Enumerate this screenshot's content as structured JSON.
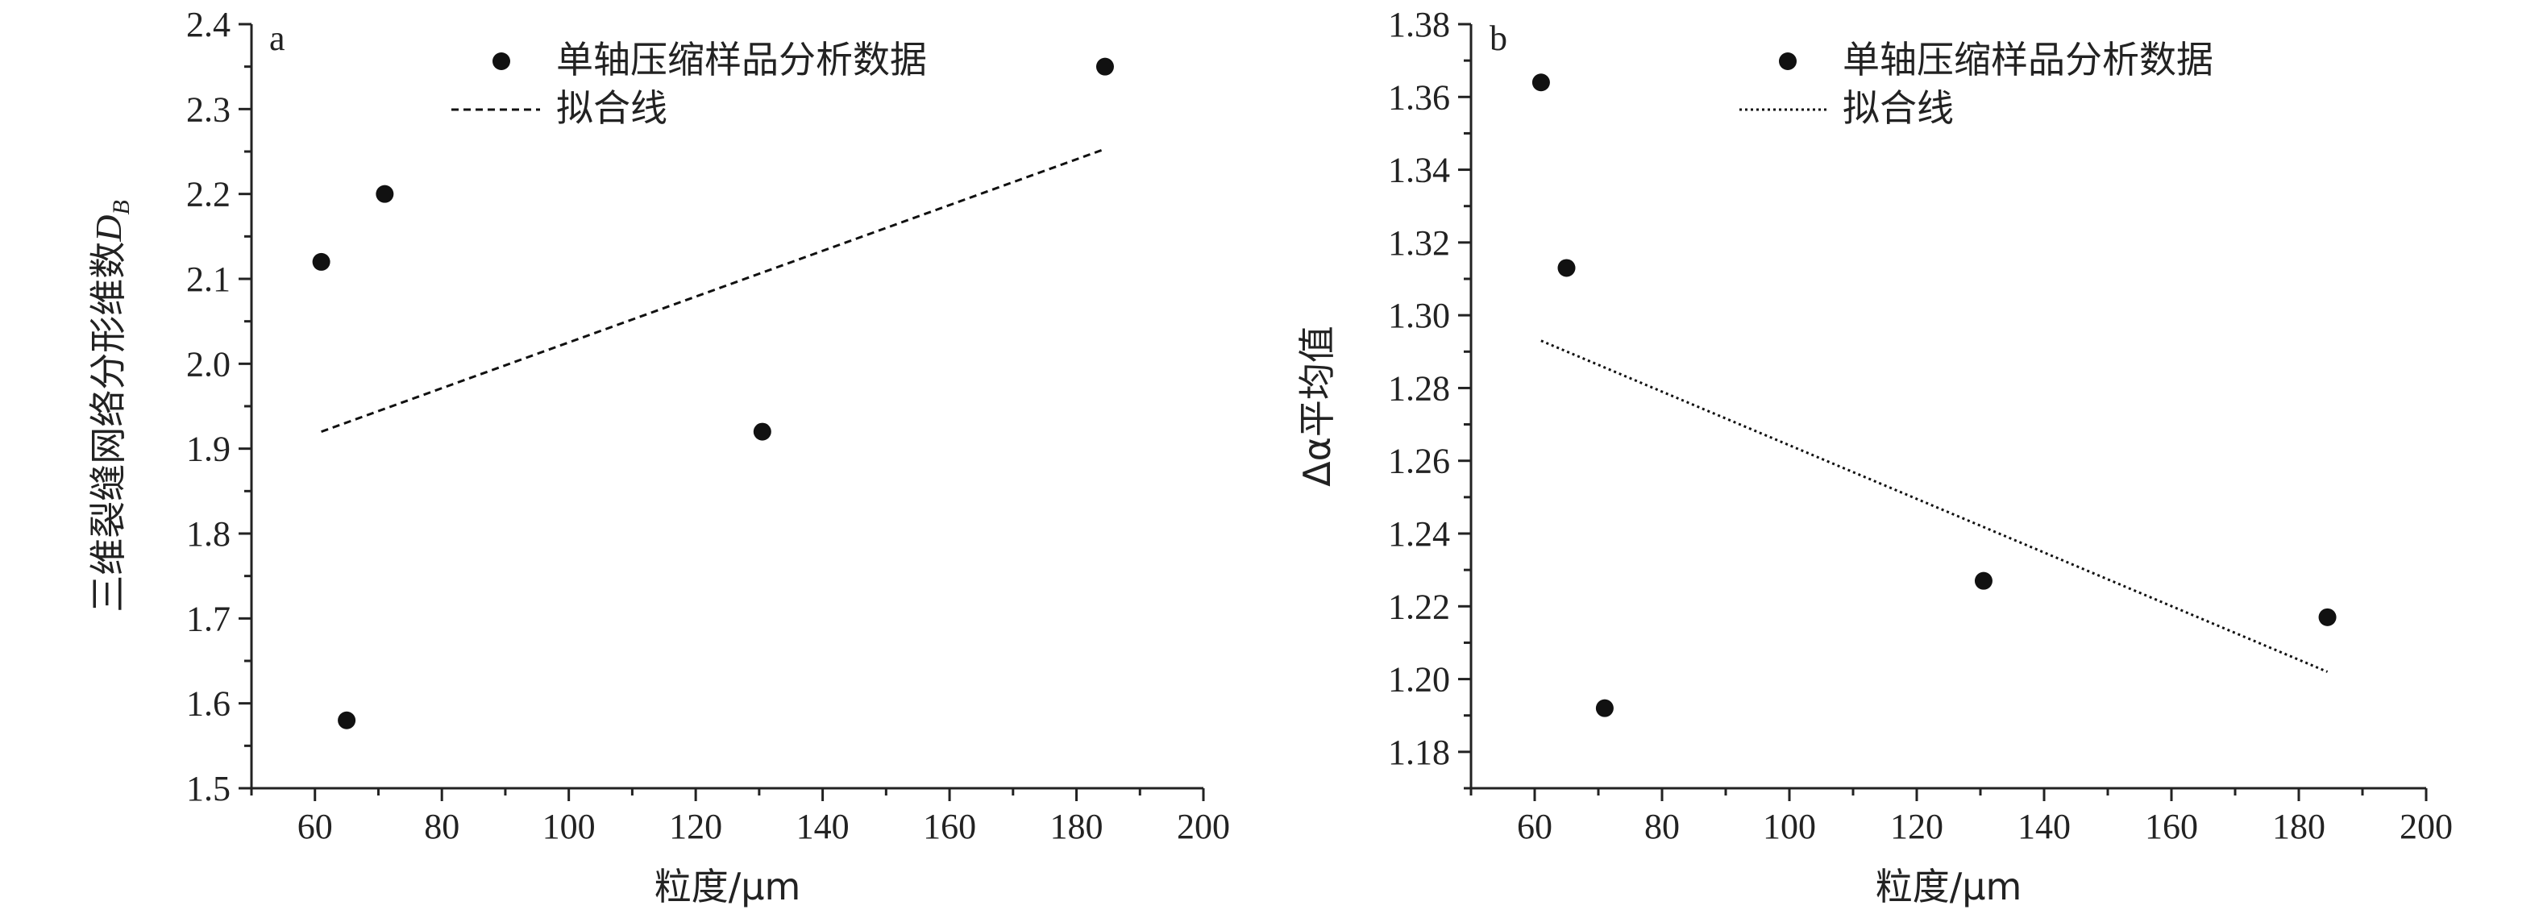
{
  "chart_data": [
    {
      "type": "scatter",
      "panel": "a",
      "xlabel": "粒度/μm",
      "ylabel": "三维裂缝网络分形维数",
      "ylabel_symbol": "D",
      "ylabel_subscript": "B",
      "xlim": [
        50,
        200
      ],
      "ylim": [
        1.5,
        2.4
      ],
      "xticks": [
        60,
        80,
        100,
        120,
        140,
        160,
        180,
        200
      ],
      "yticks": [
        1.5,
        1.6,
        1.7,
        1.8,
        1.9,
        2.0,
        2.1,
        2.2,
        2.3,
        2.4
      ],
      "ytick_decimals": 1,
      "legend_position": "top-center",
      "series": [
        {
          "name": "单轴压缩样品分析数据",
          "kind": "points",
          "x": [
            61,
            65,
            71,
            130.5,
            184.5
          ],
          "y": [
            2.12,
            1.58,
            2.2,
            1.92,
            2.35
          ]
        },
        {
          "name": "拟合线",
          "kind": "fit-line",
          "style": "dashed",
          "x": [
            61,
            184.5
          ],
          "y": [
            1.92,
            2.253
          ]
        }
      ]
    },
    {
      "type": "scatter",
      "panel": "b",
      "xlabel": "粒度/μm",
      "ylabel": "Δα平均值",
      "xlim": [
        50,
        200
      ],
      "ylim": [
        1.17,
        1.38
      ],
      "xticks": [
        60,
        80,
        100,
        120,
        140,
        160,
        180,
        200
      ],
      "yticks": [
        1.18,
        1.2,
        1.22,
        1.24,
        1.26,
        1.28,
        1.3,
        1.32,
        1.34,
        1.36,
        1.38
      ],
      "ytick_decimals": 2,
      "legend_position": "top-center",
      "series": [
        {
          "name": "单轴压缩样品分析数据",
          "kind": "points",
          "x": [
            61,
            65,
            71,
            130.5,
            184.5
          ],
          "y": [
            1.364,
            1.313,
            1.192,
            1.227,
            1.217
          ]
        },
        {
          "name": "拟合线",
          "kind": "fit-line",
          "style": "dotted",
          "x": [
            61,
            184.5
          ],
          "y": [
            1.293,
            1.202
          ]
        }
      ]
    }
  ]
}
